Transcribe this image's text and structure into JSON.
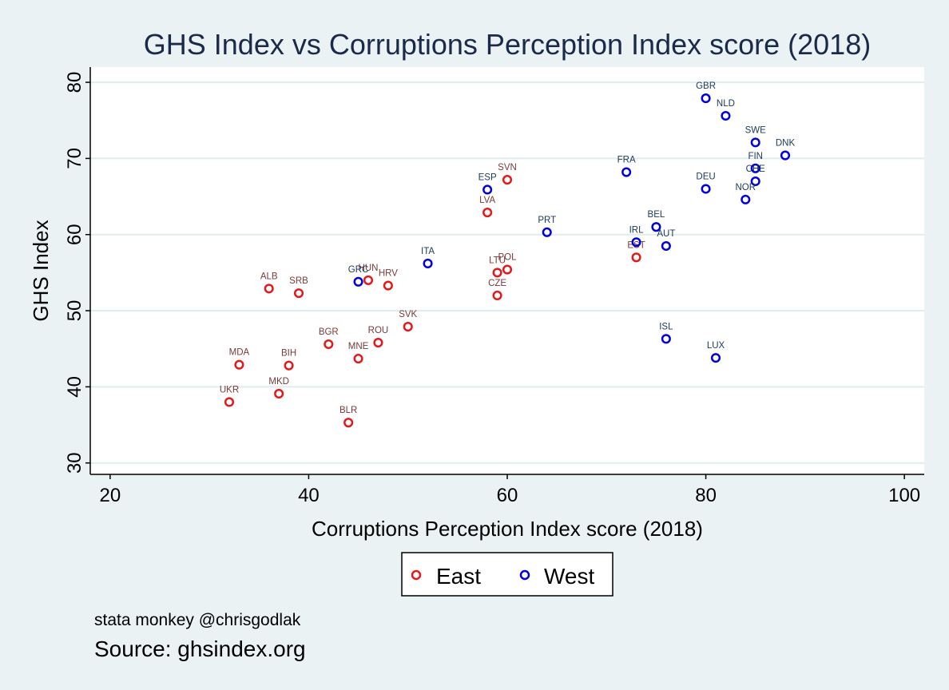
{
  "chart_data": {
    "type": "scatter",
    "title": "GHS Index vs Corruptions Perception Index score (2018)",
    "xlabel": "Corruptions Perception Index score (2018)",
    "ylabel": "GHS Index",
    "xlim": [
      18,
      102
    ],
    "ylim": [
      28.5,
      82
    ],
    "xticks": [
      20,
      40,
      60,
      80,
      100
    ],
    "yticks": [
      30,
      40,
      50,
      60,
      70,
      80
    ],
    "grid": true,
    "legend_position": "bottom",
    "colors": {
      "East": "#e31a1c",
      "West": "#0000e0",
      "label_East": "#7a3a3a",
      "label_West": "#1a3a5c"
    },
    "series": [
      {
        "name": "East",
        "points": [
          {
            "label": "ALB",
            "x": 36,
            "y": 52.9
          },
          {
            "label": "SRB",
            "x": 39,
            "y": 52.3
          },
          {
            "label": "HUN",
            "x": 46,
            "y": 54.0
          },
          {
            "label": "HRV",
            "x": 48,
            "y": 53.3
          },
          {
            "label": "SVN",
            "x": 60,
            "y": 67.2
          },
          {
            "label": "LVA",
            "x": 58,
            "y": 62.9
          },
          {
            "label": "LTU",
            "x": 59,
            "y": 55.0
          },
          {
            "label": "POL",
            "x": 60,
            "y": 55.4
          },
          {
            "label": "CZE",
            "x": 59,
            "y": 52.0
          },
          {
            "label": "SVK",
            "x": 50,
            "y": 47.9
          },
          {
            "label": "BGR",
            "x": 42,
            "y": 45.6
          },
          {
            "label": "ROU",
            "x": 47,
            "y": 45.8
          },
          {
            "label": "MNE",
            "x": 45,
            "y": 43.7
          },
          {
            "label": "MDA",
            "x": 33,
            "y": 42.9
          },
          {
            "label": "BIH",
            "x": 38,
            "y": 42.8
          },
          {
            "label": "MKD",
            "x": 37,
            "y": 39.1
          },
          {
            "label": "UKR",
            "x": 32,
            "y": 38.0
          },
          {
            "label": "BLR",
            "x": 44,
            "y": 35.3
          },
          {
            "label": "EST",
            "x": 73,
            "y": 57.0
          }
        ]
      },
      {
        "name": "West",
        "points": [
          {
            "label": "GBR",
            "x": 80,
            "y": 77.9
          },
          {
            "label": "NLD",
            "x": 82,
            "y": 75.6
          },
          {
            "label": "SWE",
            "x": 85,
            "y": 72.1
          },
          {
            "label": "DNK",
            "x": 88,
            "y": 70.4
          },
          {
            "label": "FIN",
            "x": 85,
            "y": 68.7
          },
          {
            "label": "CHE",
            "x": 85,
            "y": 67.0
          },
          {
            "label": "FRA",
            "x": 72,
            "y": 68.2
          },
          {
            "label": "DEU",
            "x": 80,
            "y": 66.0
          },
          {
            "label": "NOR",
            "x": 84,
            "y": 64.6
          },
          {
            "label": "ESP",
            "x": 58,
            "y": 65.9
          },
          {
            "label": "PRT",
            "x": 64,
            "y": 60.3
          },
          {
            "label": "BEL",
            "x": 75,
            "y": 61.0
          },
          {
            "label": "IRL",
            "x": 73,
            "y": 59.0
          },
          {
            "label": "AUT",
            "x": 76,
            "y": 58.5
          },
          {
            "label": "ITA",
            "x": 52,
            "y": 56.2
          },
          {
            "label": "GRC",
            "x": 45,
            "y": 53.8
          },
          {
            "label": "ISL",
            "x": 76,
            "y": 46.3
          },
          {
            "label": "LUX",
            "x": 81,
            "y": 43.8
          }
        ]
      }
    ]
  },
  "legend": {
    "items": [
      "East",
      "West"
    ]
  },
  "footer": {
    "note": "stata monkey @chrisgodlak",
    "source": "Source: ghsindex.org"
  }
}
